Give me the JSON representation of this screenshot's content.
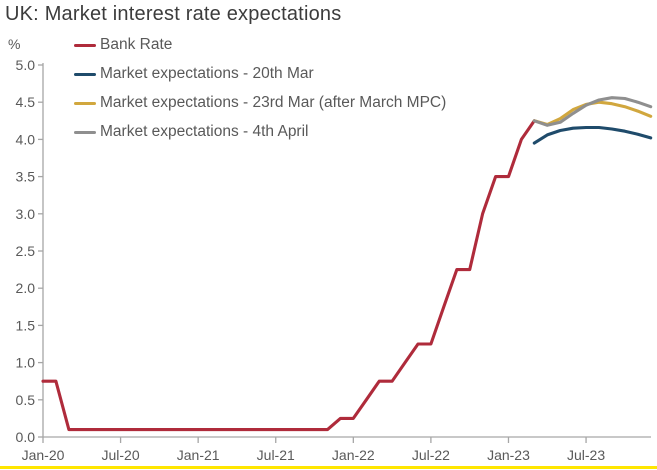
{
  "title": "UK: Market interest rate expectations",
  "colors": {
    "title_text": "#3c3c3c",
    "tick_text": "#595959",
    "axis_line": "#a6a6a6",
    "bottom_accent": "#ffe600",
    "background": "#ffffff"
  },
  "chart_data": {
    "type": "line",
    "title": "UK: Market interest rate expectations",
    "ylabel": "%",
    "ylim": [
      0.0,
      5.0
    ],
    "y_tick_step": 0.5,
    "grid": "off",
    "legend_position": "top-left vertical",
    "x_axis_unit": "months, Jan-2020 through Dec-2023",
    "x_tick_labels": [
      "Jan-20",
      "Jul-20",
      "Jan-21",
      "Jul-21",
      "Jan-22",
      "Jul-22",
      "Jan-23",
      "Jul-23"
    ],
    "x_tick_month_indices": [
      0,
      6,
      12,
      18,
      24,
      30,
      36,
      42
    ],
    "series": [
      {
        "name": "Bank Rate",
        "color": "#af2b3b",
        "start_month_index": 0,
        "monthly_values": [
          0.75,
          0.75,
          0.1,
          0.1,
          0.1,
          0.1,
          0.1,
          0.1,
          0.1,
          0.1,
          0.1,
          0.1,
          0.1,
          0.1,
          0.1,
          0.1,
          0.1,
          0.1,
          0.1,
          0.1,
          0.1,
          0.1,
          0.1,
          0.25,
          0.25,
          0.5,
          0.75,
          0.75,
          1.0,
          1.25,
          1.25,
          1.75,
          2.25,
          2.25,
          3.0,
          3.5,
          3.5,
          4.0,
          4.25
        ]
      },
      {
        "name": "Market expectations - 20th Mar",
        "color": "#1f4b6b",
        "start_month_index": 38,
        "monthly_values": [
          3.95,
          4.06,
          4.12,
          4.15,
          4.16,
          4.16,
          4.14,
          4.11,
          4.07,
          4.02
        ]
      },
      {
        "name": "Market expectations - 23rd Mar (after March MPC)",
        "color": "#d1a73e",
        "start_month_index": 38,
        "monthly_values": [
          4.25,
          4.2,
          4.28,
          4.4,
          4.47,
          4.5,
          4.48,
          4.44,
          4.38,
          4.31
        ]
      },
      {
        "name": "Market expectations - 4th April",
        "color": "#8f8f8f",
        "start_month_index": 38,
        "monthly_values": [
          4.25,
          4.19,
          4.23,
          4.35,
          4.46,
          4.53,
          4.56,
          4.55,
          4.5,
          4.44
        ]
      }
    ]
  }
}
